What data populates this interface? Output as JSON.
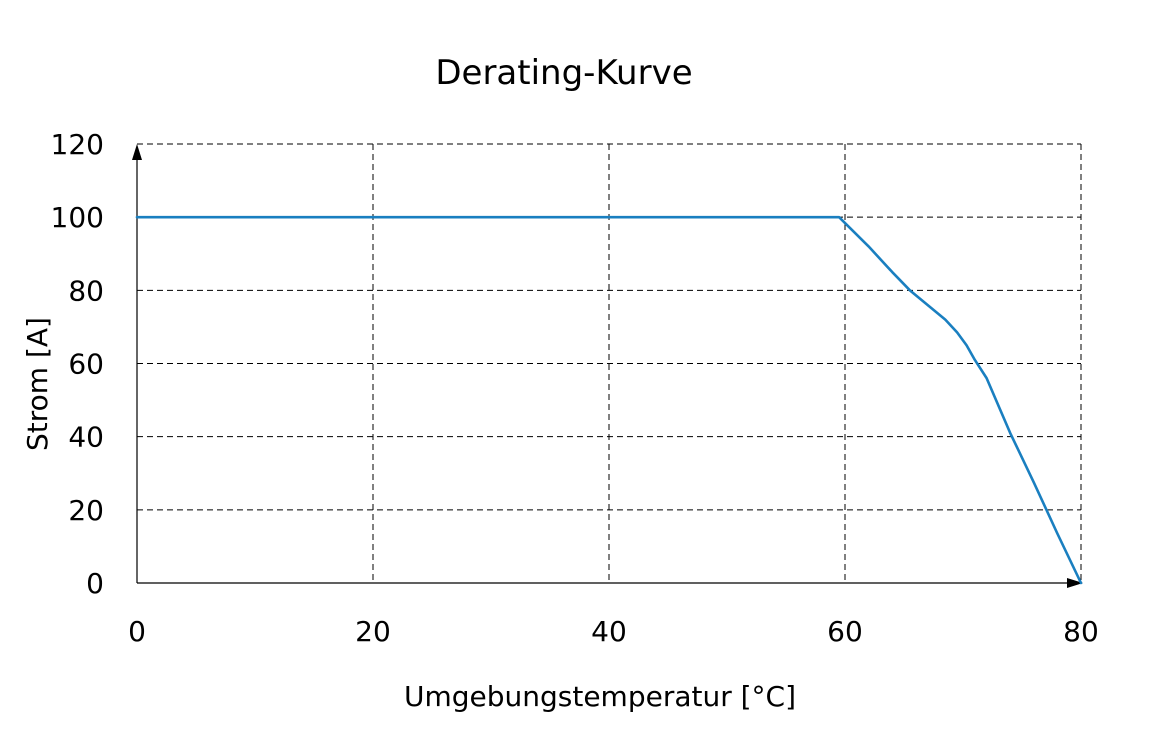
{
  "chart_data": {
    "type": "line",
    "title": "Derating-Kurve",
    "xlabel": "Umgebungstemperatur [°C]",
    "ylabel": "Strom [A]",
    "xlim": [
      0,
      80
    ],
    "ylim": [
      0,
      120
    ],
    "x_ticks": [
      0,
      20,
      40,
      60,
      80
    ],
    "y_ticks": [
      0,
      20,
      40,
      60,
      80,
      100,
      120
    ],
    "x_tick_labels": [
      "0",
      "20",
      "40",
      "60",
      "80"
    ],
    "y_tick_labels": [
      "0",
      "20",
      "40",
      "60",
      "80",
      "100",
      "120"
    ],
    "grid": true,
    "series": [
      {
        "color": "#1a7fc0",
        "x": [
          0,
          59.5,
          62,
          64,
          65.5,
          67,
          68.5,
          69.5,
          70.3,
          71,
          72,
          74,
          76,
          78,
          80
        ],
        "y": [
          100,
          100,
          92,
          85,
          80,
          76,
          72,
          68.5,
          65,
          61,
          56,
          41,
          27.5,
          13.5,
          0
        ]
      }
    ]
  }
}
